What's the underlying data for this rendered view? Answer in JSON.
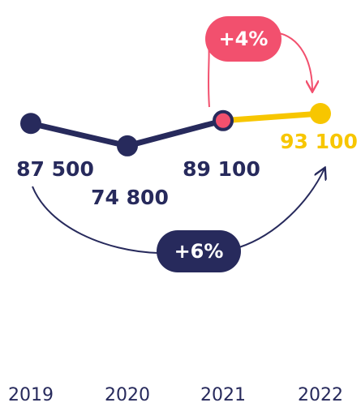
{
  "chart_data": {
    "type": "line",
    "categories": [
      "2019",
      "2020",
      "2021",
      "2022"
    ],
    "series": [
      {
        "values": [
          87500,
          74800,
          89100,
          93100
        ],
        "value_labels": [
          "87 500",
          "74 800",
          "89 100",
          "93 100"
        ],
        "color": "#272a5c",
        "point_colors": [
          "#272a5c",
          "#272a5c",
          "#f2506e",
          "#f7c600"
        ]
      }
    ],
    "highlight_color": "#f7c600",
    "ylim": [
      0,
      100000
    ],
    "annotations": [
      "+4%",
      "+6%"
    ],
    "annotation_colors": [
      "#f2506e",
      "#272a5c"
    ]
  }
}
